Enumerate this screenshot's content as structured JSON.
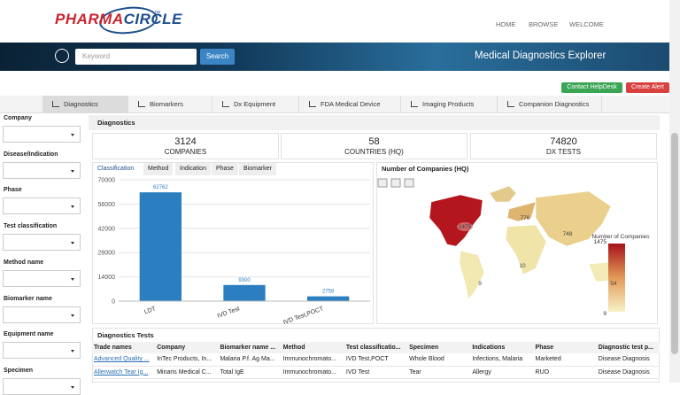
{
  "header": {
    "logo": [
      "PHARMA",
      "CIRCLE"
    ],
    "trademark": "™",
    "nav": [
      "HOME",
      "BROWSE",
      "WELCOME"
    ]
  },
  "search": {
    "placeholder": "Keyword",
    "button": "Search",
    "title": "Medical Diagnostics Explorer"
  },
  "actions": [
    "Contact HelpDesk",
    "Create Alert"
  ],
  "tabs": [
    "Diagnostics",
    "Biomarkers",
    "Dx Equipment",
    "FDA Medical Device",
    "Imaging Products",
    "Companion Diagnostics"
  ],
  "filters": [
    "Company",
    "Disease/Indication",
    "Phase",
    "Test classification",
    "Method name",
    "Biomarker name",
    "Equipment name",
    "Specimen"
  ],
  "panel_title": "Diagnostics",
  "stats": [
    {
      "value": 3124,
      "label": "COMPANIES"
    },
    {
      "value": 58,
      "label": "COUNTRIES (HQ)"
    },
    {
      "value": 74820,
      "label": "DX TESTS"
    }
  ],
  "chart_tabs": [
    "Classification",
    "Method",
    "Indication",
    "Phase",
    "Biomarker"
  ],
  "chart_data": {
    "type": "bar",
    "categories": [
      "LDT",
      "IVD Test",
      "IVD Test,POCT"
    ],
    "values": [
      62762,
      9300,
      2758
    ],
    "color": "#2b7fc0",
    "ylim": [
      0,
      70000
    ],
    "yticks": [
      0,
      14000,
      28000,
      42000,
      56000,
      70000
    ],
    "grid": true
  },
  "map": {
    "title": "Number of Companies (HQ)",
    "labels": [
      1475,
      776,
      748,
      10,
      9,
      54
    ],
    "legend_title": "Number of Companies",
    "legend_max": 1475,
    "legend_min": 9
  },
  "table": {
    "title": "Diagnostics Tests",
    "columns": [
      "Trade names",
      "Company",
      "Biomarker name ...",
      "Method",
      "Test classificatio...",
      "Specimen",
      "Indications",
      "Phase",
      "Diagnostic test p..."
    ],
    "rows": [
      [
        "Advanced Quality ...",
        "InTec Products, In...",
        "Malaria P.f. Ag Ma...",
        "Immunochromato...",
        "IVD Test,POCT",
        "Whole Blood",
        "Infections, Malaria",
        "Marketed",
        "Disease Diagnosis"
      ],
      [
        "Allerwatch Tear Ig...",
        "Minaris Medical C...",
        "Total IgE",
        "Immunochromato...",
        "IVD Test",
        "Tear",
        "Allergy",
        "RUO",
        "Disease Diagnosis"
      ]
    ]
  }
}
